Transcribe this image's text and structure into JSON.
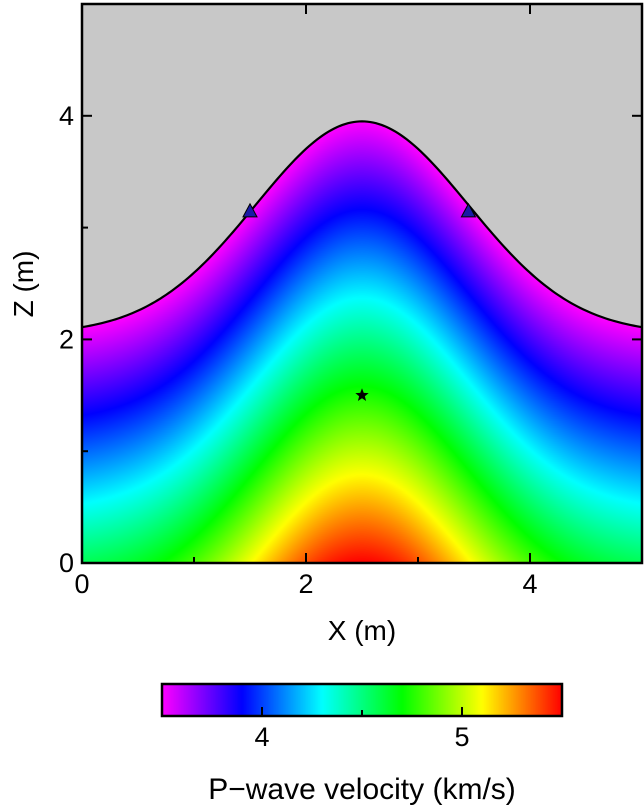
{
  "chart_data": {
    "type": "heatmap",
    "title": "",
    "xlabel": "X (m)",
    "ylabel": "Z (m)",
    "xlim": [
      0,
      5
    ],
    "ylim": [
      0,
      5
    ],
    "x_ticks": [
      0,
      2,
      4
    ],
    "y_ticks": [
      0,
      2,
      4
    ],
    "x_minor_ticks": [
      1,
      3
    ],
    "y_minor_ticks": [
      1,
      3
    ],
    "x_tick_labels": [
      "0",
      "2",
      "4"
    ],
    "y_tick_labels": [
      "0",
      "2",
      "4"
    ],
    "grid": false,
    "background_color": "#c8c8c8",
    "surface": {
      "description_label": "free surface (topography)",
      "center_x": 2.5,
      "peak_z": 3.95,
      "edge_z": 2.05,
      "sigma": 0.95,
      "color": "#000000"
    },
    "receivers": [
      {
        "x": 1.5,
        "z": 3.15,
        "marker": "triangle",
        "color": "#1a1aa6"
      },
      {
        "x": 3.45,
        "z": 3.15,
        "marker": "triangle",
        "color": "#1a1aa6"
      }
    ],
    "source": {
      "x": 2.5,
      "z": 1.5,
      "marker": "star",
      "color": "#000000"
    },
    "field": {
      "quantity": "P-wave velocity",
      "units": "km/s",
      "min": 3.5,
      "max": 5.5,
      "max_location": {
        "x": 2.5,
        "z": 0
      },
      "depth_gradient_km_s_per_m": 0.9
    },
    "colorbar": {
      "label": "P−wave velocity (km/s)",
      "range": [
        3.5,
        5.5
      ],
      "ticks": [
        4,
        5
      ],
      "tick_labels": [
        "4",
        "5"
      ],
      "minor_ticks": [
        4.5
      ],
      "orientation": "horizontal",
      "colors": [
        "#ff00ff",
        "#0000ff",
        "#00ffff",
        "#00ff00",
        "#ffff00",
        "#ff0000"
      ]
    }
  }
}
